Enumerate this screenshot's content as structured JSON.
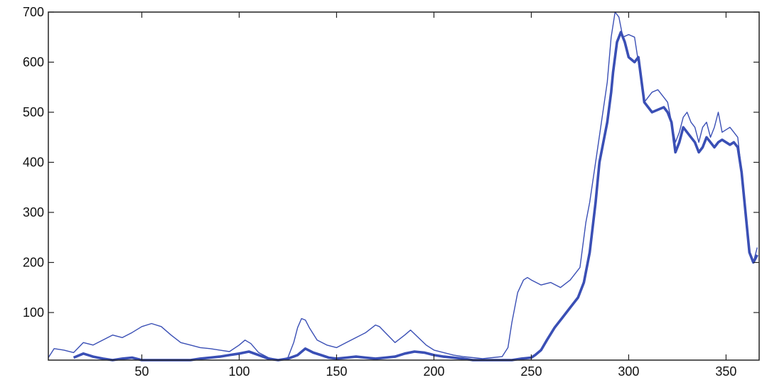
{
  "chart_data": {
    "type": "line",
    "title": "",
    "xlabel": "",
    "ylabel": "",
    "xlim": [
      2,
      367
    ],
    "ylim": [
      5,
      700
    ],
    "xticks": [
      50,
      100,
      150,
      200,
      250,
      300,
      350
    ],
    "yticks": [
      100,
      200,
      300,
      400,
      500,
      600,
      700
    ],
    "grid": false,
    "series": [
      {
        "color": "#3a4fb5",
        "style": "thin",
        "x": [
          2,
          5,
          10,
          15,
          20,
          25,
          30,
          35,
          40,
          45,
          50,
          55,
          60,
          65,
          70,
          75,
          80,
          85,
          90,
          95,
          100,
          103,
          106,
          110,
          115,
          120,
          125,
          128,
          130,
          132,
          134,
          136,
          140,
          145,
          150,
          155,
          160,
          165,
          170,
          172,
          175,
          180,
          185,
          188,
          192,
          196,
          200,
          205,
          210,
          215,
          220,
          225,
          230,
          235,
          238,
          240,
          243,
          246,
          248,
          250,
          255,
          260,
          265,
          270,
          275,
          278,
          280,
          283,
          286,
          289,
          291,
          293,
          295,
          297,
          300,
          303,
          305,
          308,
          312,
          315,
          318,
          320,
          322,
          324,
          326,
          328,
          330,
          332,
          334,
          336,
          338,
          340,
          342,
          344,
          346,
          348,
          350,
          352,
          354,
          356,
          358,
          360,
          362,
          364,
          366
        ],
        "y": [
          10,
          28,
          25,
          20,
          40,
          35,
          45,
          55,
          50,
          60,
          72,
          78,
          72,
          55,
          40,
          35,
          30,
          28,
          25,
          22,
          35,
          45,
          38,
          20,
          10,
          5,
          10,
          40,
          70,
          88,
          85,
          70,
          45,
          35,
          30,
          40,
          50,
          60,
          75,
          72,
          60,
          40,
          55,
          65,
          50,
          35,
          25,
          20,
          15,
          12,
          10,
          8,
          10,
          12,
          30,
          80,
          140,
          165,
          170,
          165,
          155,
          160,
          150,
          165,
          190,
          280,
          320,
          400,
          480,
          560,
          650,
          700,
          690,
          650,
          655,
          650,
          600,
          520,
          540,
          545,
          530,
          520,
          480,
          440,
          460,
          490,
          500,
          480,
          470,
          440,
          470,
          480,
          450,
          470,
          500,
          460,
          465,
          470,
          460,
          450,
          380,
          300,
          220,
          200,
          230
        ]
      },
      {
        "color": "#3a4fb5",
        "style": "thick",
        "x": [
          15,
          20,
          25,
          30,
          35,
          40,
          45,
          50,
          55,
          60,
          65,
          70,
          75,
          80,
          85,
          90,
          95,
          100,
          105,
          110,
          115,
          120,
          125,
          130,
          134,
          138,
          142,
          146,
          150,
          155,
          160,
          165,
          170,
          175,
          180,
          185,
          190,
          195,
          200,
          205,
          210,
          215,
          220,
          225,
          230,
          235,
          240,
          245,
          250,
          252,
          255,
          258,
          262,
          266,
          270,
          274,
          277,
          280,
          283,
          285,
          287,
          289,
          291,
          292,
          294,
          296,
          298,
          300,
          303,
          305,
          308,
          312,
          315,
          318,
          320,
          322,
          324,
          326,
          328,
          330,
          332,
          334,
          336,
          338,
          340,
          342,
          344,
          346,
          348,
          350,
          352,
          354,
          356,
          358,
          360,
          362,
          364,
          366
        ],
        "y": [
          10,
          18,
          12,
          8,
          5,
          8,
          10,
          5,
          5,
          5,
          5,
          5,
          5,
          8,
          10,
          12,
          15,
          18,
          22,
          15,
          8,
          5,
          8,
          15,
          28,
          20,
          15,
          10,
          8,
          10,
          12,
          10,
          8,
          10,
          12,
          18,
          22,
          20,
          15,
          12,
          10,
          8,
          5,
          5,
          5,
          5,
          5,
          8,
          10,
          15,
          25,
          45,
          70,
          90,
          110,
          130,
          160,
          220,
          320,
          400,
          440,
          480,
          540,
          580,
          640,
          660,
          640,
          610,
          600,
          610,
          520,
          500,
          505,
          510,
          500,
          480,
          420,
          440,
          470,
          460,
          450,
          440,
          420,
          430,
          450,
          440,
          430,
          440,
          445,
          440,
          435,
          440,
          430,
          380,
          300,
          220,
          200,
          215
        ]
      }
    ]
  }
}
